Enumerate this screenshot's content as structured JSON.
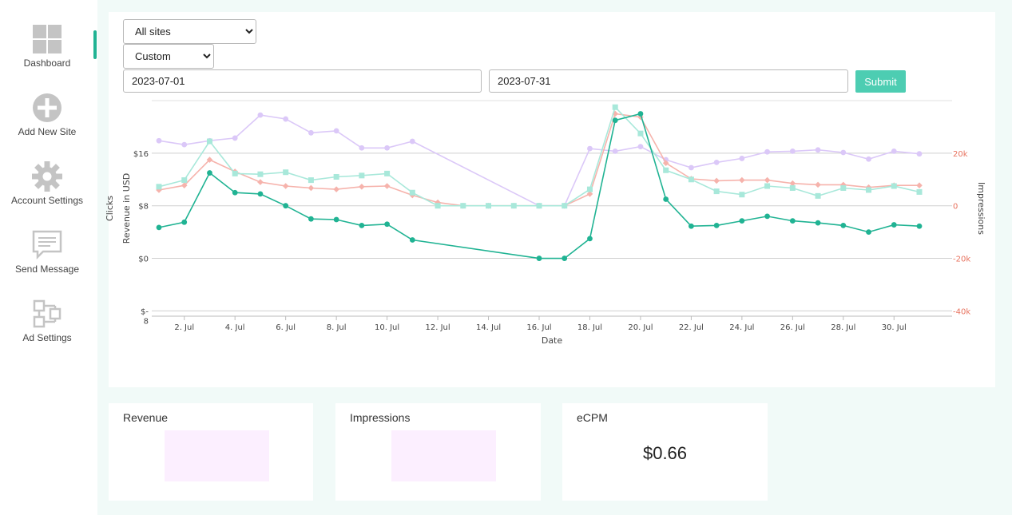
{
  "sidebar": {
    "items": [
      {
        "label": "Dashboard",
        "icon": "dashboard-icon"
      },
      {
        "label": "Add New Site",
        "icon": "add-circle-icon"
      },
      {
        "label": "Account Settings",
        "icon": "gear-icon"
      },
      {
        "label": "Send Message",
        "icon": "message-icon"
      },
      {
        "label": "Ad Settings",
        "icon": "ad-settings-icon"
      }
    ]
  },
  "filters": {
    "site_select": {
      "value": "All sites",
      "options": [
        "All sites"
      ]
    },
    "range_select": {
      "value": "Custom",
      "options": [
        "Custom"
      ]
    },
    "start_date": "2023-07-01",
    "end_date": "2023-07-31",
    "submit_label": "Submit"
  },
  "chart_data": {
    "type": "line",
    "xlabel": "Date",
    "ylabel_left": "Revenue in USD",
    "ylabel_left_secondary": "Clicks",
    "ylabel_right": "Impressions",
    "x_tick_labels": [
      "2. Jul",
      "4. Jul",
      "6. Jul",
      "8. Jul",
      "10. Jul",
      "12. Jul",
      "14. Jul",
      "16. Jul",
      "18. Jul",
      "20. Jul",
      "22. Jul",
      "24. Jul",
      "26. Jul",
      "28. Jul",
      "30. Jul"
    ],
    "x_tick_days": [
      2,
      4,
      6,
      8,
      10,
      12,
      14,
      16,
      18,
      20,
      22,
      24,
      26,
      28,
      30
    ],
    "xlim": [
      0.6,
      31.7
    ],
    "left_axis": {
      "ticks": [
        "$16",
        "$8",
        "$0",
        "$-\n8"
      ],
      "values": [
        16,
        8,
        0,
        -8
      ],
      "ylim": [
        -8.8,
        24
      ]
    },
    "right_axis": {
      "ticks": [
        "20k",
        "0",
        "-20k",
        "-40k"
      ],
      "values": [
        20000,
        0,
        -20000,
        -40000
      ],
      "color": "#e8735f"
    },
    "series": [
      {
        "color": "#20b393",
        "marker": "circle",
        "points": [
          [
            1,
            4.7
          ],
          [
            2,
            5.5
          ],
          [
            3,
            13
          ],
          [
            4,
            10
          ],
          [
            5,
            9.8
          ],
          [
            6,
            8
          ],
          [
            7,
            6
          ],
          [
            8,
            5.9
          ],
          [
            9,
            5
          ],
          [
            10,
            5.2
          ],
          [
            11,
            2.8
          ],
          [
            16,
            0
          ],
          [
            17,
            0
          ],
          [
            18,
            3
          ],
          [
            19,
            21
          ],
          [
            20,
            22
          ],
          [
            21,
            9
          ],
          [
            22,
            4.9
          ],
          [
            23,
            5
          ],
          [
            24,
            5.7
          ],
          [
            25,
            6.4
          ],
          [
            26,
            5.7
          ],
          [
            27,
            5.4
          ],
          [
            28,
            5
          ],
          [
            29,
            4
          ],
          [
            30,
            5.1
          ],
          [
            31,
            4.9
          ]
        ]
      },
      {
        "color": "#a8e8da",
        "marker": "square",
        "points": [
          [
            1,
            10.9
          ],
          [
            2,
            11.9
          ],
          [
            3,
            17.8
          ],
          [
            4,
            12.9
          ],
          [
            5,
            12.8
          ],
          [
            6,
            13.1
          ],
          [
            7,
            11.9
          ],
          [
            8,
            12.4
          ],
          [
            9,
            12.6
          ],
          [
            10,
            12.9
          ],
          [
            11,
            10
          ],
          [
            12,
            8
          ],
          [
            13,
            8
          ],
          [
            14,
            8
          ],
          [
            15,
            8
          ],
          [
            16,
            8
          ],
          [
            17,
            8
          ],
          [
            18,
            10.5
          ],
          [
            19,
            23
          ],
          [
            20,
            19
          ],
          [
            21,
            13.4
          ],
          [
            22,
            12
          ],
          [
            23,
            10.2
          ],
          [
            24,
            9.7
          ],
          [
            25,
            11
          ],
          [
            26,
            10.7
          ],
          [
            27,
            9.5
          ],
          [
            28,
            10.7
          ],
          [
            29,
            10.4
          ],
          [
            30,
            11
          ],
          [
            31,
            10.1
          ]
        ]
      },
      {
        "color": "#f6b3ac",
        "marker": "diamond",
        "points": [
          [
            1,
            10.4
          ],
          [
            2,
            11.1
          ],
          [
            3,
            15
          ],
          [
            4,
            13.2
          ],
          [
            5,
            11.6
          ],
          [
            6,
            11
          ],
          [
            7,
            10.7
          ],
          [
            8,
            10.5
          ],
          [
            9,
            10.9
          ],
          [
            10,
            11
          ],
          [
            11,
            9.6
          ],
          [
            12,
            8.5
          ],
          [
            13,
            8
          ],
          [
            14,
            8
          ],
          [
            15,
            8
          ],
          [
            16,
            8
          ],
          [
            17,
            8
          ],
          [
            18,
            9.8
          ],
          [
            19,
            22
          ],
          [
            20,
            21.5
          ],
          [
            21,
            14.5
          ],
          [
            22,
            12.1
          ],
          [
            23,
            11.8
          ],
          [
            24,
            11.9
          ],
          [
            25,
            11.9
          ],
          [
            26,
            11.4
          ],
          [
            27,
            11.2
          ],
          [
            28,
            11.2
          ],
          [
            29,
            10.8
          ],
          [
            30,
            11.1
          ],
          [
            31,
            11.1
          ]
        ]
      },
      {
        "color": "#dbc8f8",
        "marker": "circle",
        "points": [
          [
            1,
            17.9
          ],
          [
            2,
            17.3
          ],
          [
            3,
            17.9
          ],
          [
            4,
            18.3
          ],
          [
            5,
            21.8
          ],
          [
            6,
            21.2
          ],
          [
            7,
            19.1
          ],
          [
            8,
            19.4
          ],
          [
            9,
            16.8
          ],
          [
            10,
            16.8
          ],
          [
            11,
            17.8
          ],
          [
            16,
            8
          ],
          [
            17,
            8
          ],
          [
            18,
            16.7
          ],
          [
            19,
            16.3
          ],
          [
            20,
            17
          ],
          [
            21,
            15
          ],
          [
            22,
            13.8
          ],
          [
            23,
            14.6
          ],
          [
            24,
            15.2
          ],
          [
            25,
            16.2
          ],
          [
            26,
            16.3
          ],
          [
            27,
            16.5
          ],
          [
            28,
            16.1
          ],
          [
            29,
            15.1
          ],
          [
            30,
            16.3
          ],
          [
            31,
            15.9
          ]
        ]
      }
    ]
  },
  "cards": {
    "revenue_title": "Revenue",
    "impressions_title": "Impressions",
    "ecpm_title": "eCPM",
    "ecpm_value": "$0.66"
  },
  "colors": {
    "accent": "#20b393",
    "submit": "#4dcdb2",
    "right_axis": "#e8735f",
    "placeholder": "#fcefff"
  }
}
